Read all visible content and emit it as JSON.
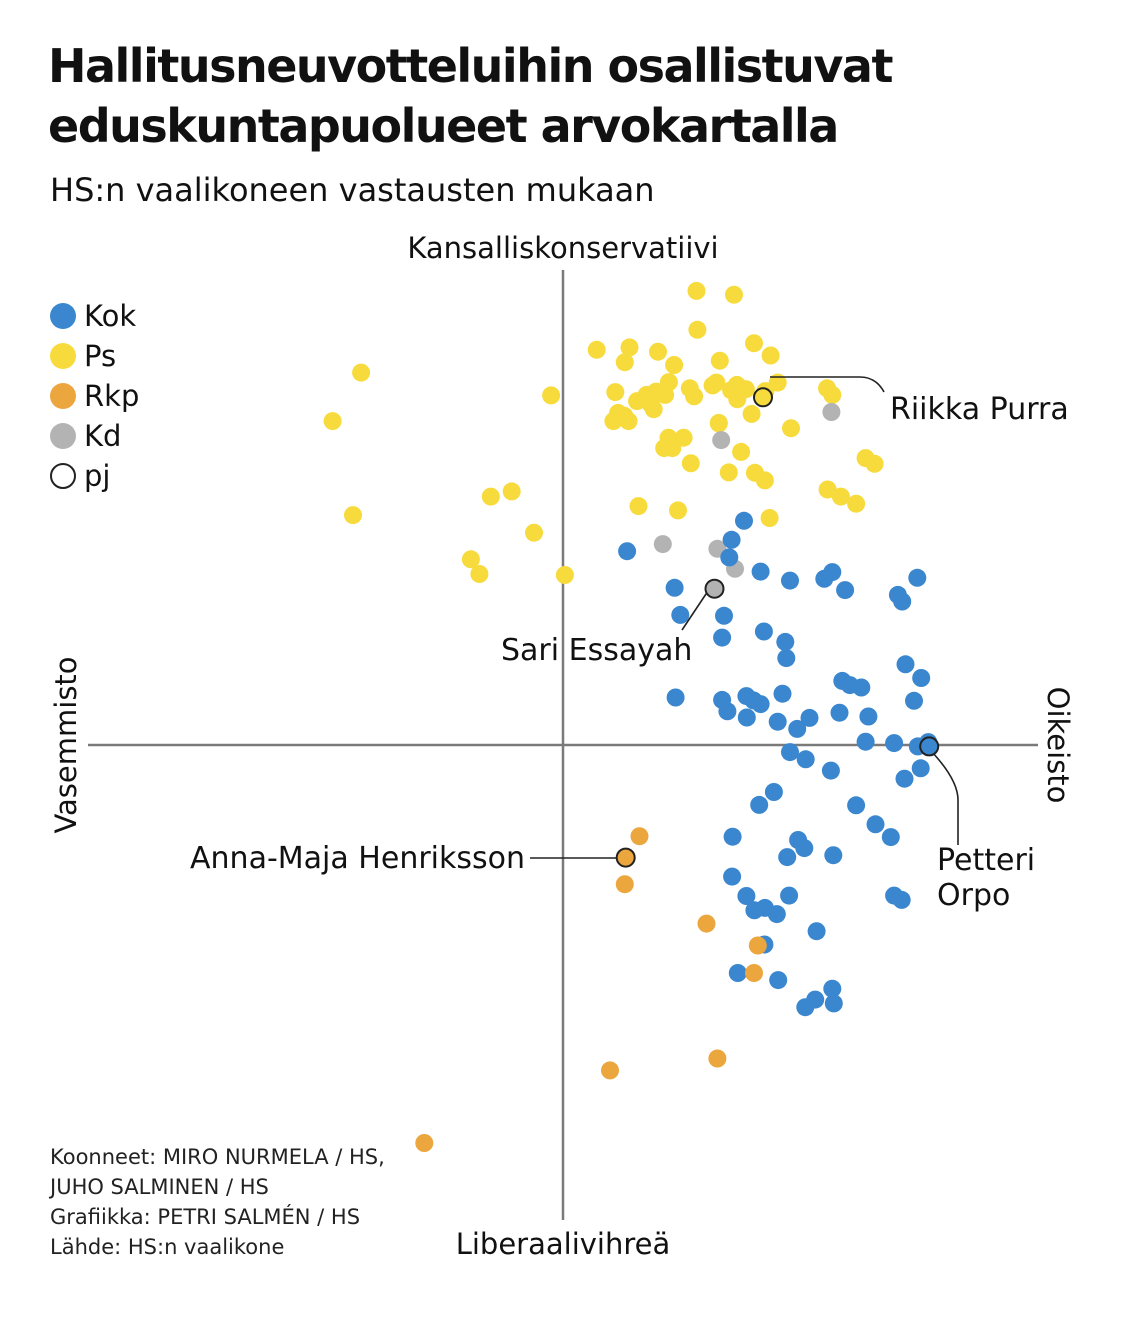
{
  "title": "Hallitusneuvotteluihin osallistuvat eduskuntapuolueet arvokartalla",
  "subtitle": "HS:n vaalikoneen vastausten mukaan",
  "legend": [
    {
      "label": "Kok",
      "color": "#3a87cf"
    },
    {
      "label": "Ps",
      "color": "#f7db3c"
    },
    {
      "label": "Rkp",
      "color": "#eca63e"
    },
    {
      "label": "Kd",
      "color": "#b3b3b3"
    },
    {
      "label": "pj",
      "color": "#ffffff",
      "outline": true
    }
  ],
  "credits": [
    "Koonneet: MIRO NURMELA / HS,",
    "JUHO SALMINEN / HS",
    "Grafiikka: PETRI SALMÉN / HS",
    "Lähde: HS:n vaalikone"
  ],
  "chart_data": {
    "type": "scatter",
    "axis_labels": {
      "top": "Kansalliskonservatiivi",
      "bottom": "Liberaalivihreä",
      "left": "Vasemmisto",
      "right": "Oikeisto"
    },
    "xlim": [
      -100,
      100
    ],
    "ylim": [
      -100,
      100
    ],
    "grid": false,
    "legend_position": "top-left",
    "series": [
      {
        "name": "Ps",
        "color": "#f7db3c",
        "points": [
          [
            28.1,
            95.6
          ],
          [
            36.0,
            94.8
          ],
          [
            28.3,
            87.4
          ],
          [
            40.2,
            84.6
          ],
          [
            14.0,
            83.7
          ],
          [
            20.0,
            82.8
          ],
          [
            13.0,
            80.6
          ],
          [
            33.0,
            80.9
          ],
          [
            43.7,
            82.0
          ],
          [
            23.4,
            80.0
          ],
          [
            22.3,
            76.4
          ],
          [
            32.3,
            76.3
          ],
          [
            35.4,
            74.7
          ],
          [
            21.5,
            73.7
          ],
          [
            18.5,
            71.7
          ],
          [
            17.6,
            73.7
          ],
          [
            19.6,
            74.4
          ],
          [
            26.7,
            75.1
          ],
          [
            36.6,
            75.8
          ],
          [
            38.5,
            74.9
          ],
          [
            42.6,
            74.5
          ],
          [
            45.2,
            76.3
          ],
          [
            -42.5,
            78.4
          ],
          [
            -2.5,
            73.6
          ],
          [
            13.8,
            68.2
          ],
          [
            11.6,
            69.9
          ],
          [
            -48.5,
            68.2
          ],
          [
            22.2,
            64.7
          ],
          [
            25.4,
            64.7
          ],
          [
            21.3,
            62.5
          ],
          [
            10.6,
            68.2
          ],
          [
            15.6,
            72.4
          ],
          [
            19.1,
            70.7
          ],
          [
            32.8,
            67.7
          ],
          [
            37.5,
            61.7
          ],
          [
            27.6,
            73.4
          ],
          [
            31.5,
            75.7
          ],
          [
            32.8,
            67.8
          ],
          [
            36.7,
            72.8
          ],
          [
            55.6,
            75.1
          ],
          [
            56.7,
            73.7
          ],
          [
            12.9,
            69.3
          ],
          [
            11.0,
            74.3
          ],
          [
            7.1,
            83.2
          ],
          [
            17.4,
            73.2
          ],
          [
            39.7,
            69.7
          ],
          [
            48.0,
            66.7
          ],
          [
            23.0,
            62.5
          ],
          [
            26.9,
            59.3
          ],
          [
            40.4,
            57.3
          ],
          [
            34.9,
            57.4
          ],
          [
            63.7,
            60.4
          ],
          [
            65.6,
            59.2
          ],
          [
            42.5,
            55.7
          ],
          [
            55.7,
            53.8
          ],
          [
            58.5,
            52.3
          ],
          [
            61.7,
            50.8
          ],
          [
            43.5,
            47.8
          ],
          [
            -10.8,
            53.4
          ],
          [
            -15.2,
            52.3
          ],
          [
            -44.2,
            48.4
          ],
          [
            -6.1,
            44.7
          ],
          [
            15.9,
            50.3
          ],
          [
            24.2,
            49.4
          ],
          [
            -19.4,
            39.1
          ],
          [
            -17.6,
            36.0
          ],
          [
            0.4,
            35.8
          ]
        ]
      },
      {
        "name": "Kok",
        "color": "#3a87cf",
        "points": [
          [
            38.1,
            47.2
          ],
          [
            35.5,
            43.2
          ],
          [
            13.5,
            40.8
          ],
          [
            35.0,
            39.5
          ],
          [
            56.7,
            36.4
          ],
          [
            55.0,
            35.0
          ],
          [
            70.5,
            31.6
          ],
          [
            74.6,
            35.2
          ],
          [
            47.8,
            34.6
          ],
          [
            41.6,
            36.5
          ],
          [
            23.5,
            33.1
          ],
          [
            59.4,
            32.6
          ],
          [
            71.4,
            30.2
          ],
          [
            33.9,
            27.2
          ],
          [
            24.7,
            27.4
          ],
          [
            33.5,
            22.6
          ],
          [
            42.3,
            23.9
          ],
          [
            46.8,
            21.7
          ],
          [
            47.0,
            18.3
          ],
          [
            72.1,
            17.0
          ],
          [
            75.4,
            14.1
          ],
          [
            38.6,
            10.3
          ],
          [
            40.1,
            9.4
          ],
          [
            46.2,
            10.8
          ],
          [
            58.8,
            13.5
          ],
          [
            60.4,
            12.6
          ],
          [
            62.8,
            12.1
          ],
          [
            23.7,
            10.0
          ],
          [
            41.6,
            8.6
          ],
          [
            73.9,
            9.3
          ],
          [
            58.2,
            6.8
          ],
          [
            64.3,
            6.0
          ],
          [
            51.9,
            5.7
          ],
          [
            34.6,
            7.1
          ],
          [
            33.5,
            9.5
          ],
          [
            38.7,
            5.8
          ],
          [
            45.2,
            4.9
          ],
          [
            49.3,
            3.4
          ],
          [
            76.9,
            0.6
          ],
          [
            74.7,
            -0.3
          ],
          [
            69.7,
            0.4
          ],
          [
            63.7,
            0.7
          ],
          [
            47.8,
            -1.5
          ],
          [
            51.1,
            -3.0
          ],
          [
            56.4,
            -5.4
          ],
          [
            75.3,
            -4.9
          ],
          [
            71.9,
            -7.1
          ],
          [
            44.4,
            -9.9
          ],
          [
            41.3,
            -12.6
          ],
          [
            61.7,
            -12.7
          ],
          [
            35.7,
            -19.3
          ],
          [
            65.8,
            -16.7
          ],
          [
            69.0,
            -19.4
          ],
          [
            49.5,
            -20.0
          ],
          [
            50.8,
            -21.7
          ],
          [
            47.2,
            -23.6
          ],
          [
            56.9,
            -23.2
          ],
          [
            35.6,
            -27.7
          ],
          [
            69.7,
            -31.7
          ],
          [
            71.3,
            -32.6
          ],
          [
            38.6,
            -31.8
          ],
          [
            47.6,
            -31.7
          ],
          [
            42.5,
            -34.3
          ],
          [
            40.3,
            -34.8
          ],
          [
            45.0,
            -35.6
          ],
          [
            53.4,
            -39.2
          ],
          [
            42.4,
            -42.0
          ],
          [
            36.8,
            -48.0
          ],
          [
            45.3,
            -49.5
          ],
          [
            56.7,
            -51.3
          ],
          [
            53.1,
            -53.6
          ],
          [
            57.0,
            -54.4
          ],
          [
            51.0,
            -55.2
          ]
        ]
      },
      {
        "name": "Rkp",
        "color": "#eca63e",
        "points": [
          [
            16.1,
            -19.2
          ],
          [
            13.0,
            -29.3
          ],
          [
            30.2,
            -37.6
          ],
          [
            41.0,
            -42.2
          ],
          [
            40.2,
            -48.0
          ],
          [
            32.5,
            -66.0
          ],
          [
            9.9,
            -68.5
          ],
          [
            -29.2,
            -83.8
          ]
        ]
      },
      {
        "name": "Kd",
        "color": "#b3b3b3",
        "points": [
          [
            56.5,
            70.1
          ],
          [
            33.3,
            64.2
          ],
          [
            21.0,
            42.3
          ],
          [
            32.5,
            41.3
          ],
          [
            36.2,
            37.1
          ]
        ]
      },
      {
        "name": "pj",
        "color": "outline",
        "points": [
          [
            41.5,
            72.8
          ],
          [
            41.4,
            69.7
          ],
          [
            31.9,
            30.7
          ],
          [
            13.0,
            -25.6
          ],
          [
            78.1,
            0.4
          ]
        ]
      }
    ],
    "highlighted": [
      {
        "name": "Riikka Purra",
        "party": "Ps",
        "x": 42.1,
        "y": 73.2,
        "color": "#f7db3c"
      },
      {
        "name": "Sari Essayah",
        "party": "Kd",
        "x": 31.9,
        "y": 32.9,
        "color": "#b3b3b3"
      },
      {
        "name": "Anna-Maja Henriksson",
        "party": "Rkp",
        "x": 13.2,
        "y": -23.7,
        "color": "#eca63e"
      },
      {
        "name_lines": [
          "Petteri",
          "Orpo"
        ],
        "party": "Kok",
        "x": 77.1,
        "y": -0.3,
        "color": "#3a87cf"
      }
    ]
  }
}
